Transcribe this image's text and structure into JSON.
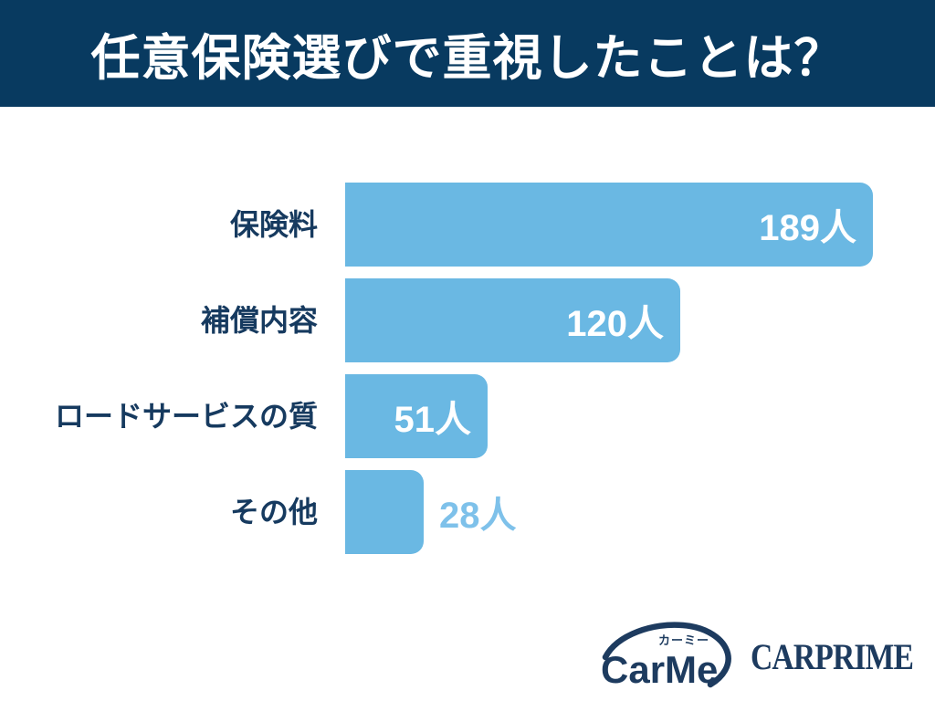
{
  "title": "任意保険選びで重視したことは？",
  "colors": {
    "header_bg": "#083a60",
    "bar_fill": "#6ab8e3",
    "category_label_text": "#163a5f",
    "value_inside_text": "#ffffff",
    "value_outside_text": "#7ec1ea",
    "brand_navy": "#1d3b5f",
    "background": "#ffffff"
  },
  "chart_data": {
    "type": "bar",
    "orientation": "horizontal",
    "title": "任意保険選びで重視したことは？",
    "categories": [
      "保険料",
      "補償内容",
      "ロードサービスの質",
      "その他"
    ],
    "values": [
      189,
      120,
      51,
      28
    ],
    "value_labels": [
      "189人",
      "120人",
      "51人",
      "28人"
    ],
    "value_label_positions": [
      "inside",
      "inside",
      "inside",
      "outside"
    ],
    "unit": "人",
    "xlim": [
      0,
      189
    ],
    "grid": false,
    "legend": false
  },
  "footer": {
    "carme_logo_text": "CarMe",
    "carme_logo_furigana": "カーミー",
    "carprime_text": "CARPRIME"
  }
}
